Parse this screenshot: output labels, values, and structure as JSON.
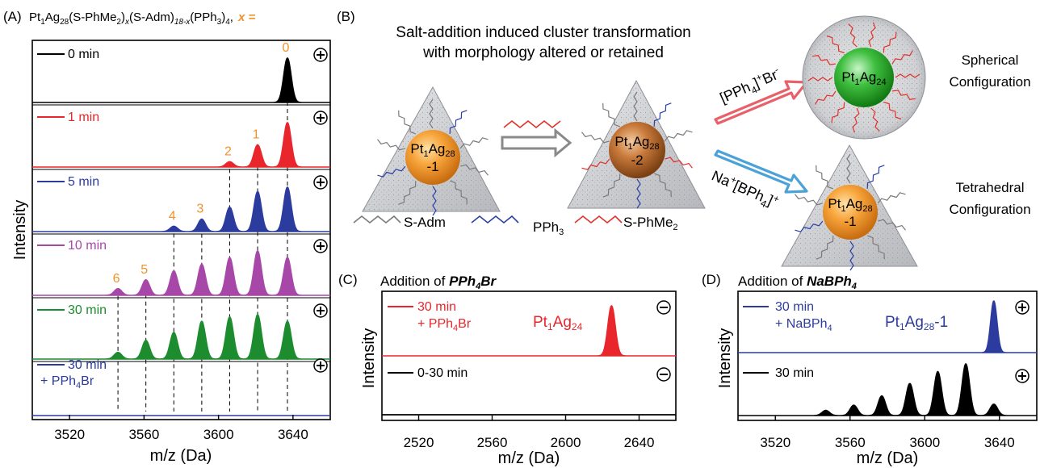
{
  "figure": {
    "panel_a_label": "(A)",
    "panel_b_label": "(B)",
    "panel_c_label": "(C)",
    "panel_d_label": "(D)"
  },
  "panel_a": {
    "formula_parts": [
      "Pt",
      "1",
      "Ag",
      "28",
      "(S-PhMe",
      "2",
      ")",
      "x",
      "(S-Adm)",
      "18-x",
      "(PPh",
      "3",
      ")",
      "4",
      ",",
      "x ="
    ],
    "ylabel": "Intensity",
    "xlabel": "m/z (Da)"
  },
  "panel_b": {
    "title_line1": "Salt-addition induced cluster transformation",
    "title_line2": "with morphology altered or retained",
    "cluster1_label": [
      "Pt",
      "1",
      "Ag",
      "28",
      "-1"
    ],
    "cluster2_label": [
      "Pt",
      "1",
      "Ag",
      "28",
      "-2"
    ],
    "sphere_label": [
      "Pt",
      "1",
      "Ag",
      "24"
    ],
    "cluster3_label": [
      "Pt",
      "1",
      "Ag",
      "28",
      "-1"
    ],
    "reagent_top": [
      "[PPh",
      "4",
      "]",
      "+",
      "Br",
      "-"
    ],
    "reagent_bottom": [
      "Na",
      "+",
      "[BPh",
      "4",
      "]",
      "+"
    ],
    "config_top": [
      "Spherical",
      "Configuration"
    ],
    "config_bottom": [
      "Tetrahedral",
      "Configuration"
    ],
    "legend": [
      {
        "label": "S-Adm",
        "color": "#7a7a7a"
      },
      {
        "label": "PPh",
        "sub": "3",
        "color": "#2a3fa8"
      },
      {
        "label": "S-PhMe",
        "sub": "2",
        "color": "#e0302a"
      }
    ]
  },
  "panel_c": {
    "title": "Addition of ",
    "title_reagent": [
      "PPh",
      "4",
      "Br"
    ],
    "ylabel": "Intensity",
    "xlabel": "m/z (Da)",
    "trace_top_label": [
      "30 min",
      "+ PPh",
      "4",
      "Br"
    ],
    "trace_bottom_label": "0-30 min",
    "peak_label": [
      "Pt",
      "1",
      "Ag",
      "24"
    ]
  },
  "panel_d": {
    "title": "Addition of ",
    "title_reagent": [
      "NaBPh",
      "4"
    ],
    "ylabel": "Intensity",
    "xlabel": "m/z (Da)",
    "trace_top_label": [
      "30 min",
      "+ NaBPh",
      "4"
    ],
    "trace_bottom_label": "30 min",
    "peak_label": [
      "Pt",
      "1",
      "Ag",
      "28",
      "-1"
    ]
  },
  "chart_data": [
    {
      "id": "A",
      "type": "line",
      "xlabel": "m/z (Da)",
      "ylabel": "Intensity",
      "xlim": [
        3500,
        3660
      ],
      "xticks": [
        3520,
        3560,
        3600,
        3640
      ],
      "peak_positions": [
        3637,
        3621,
        3606,
        3591,
        3576,
        3561,
        3546
      ],
      "peak_labels": [
        "0",
        "1",
        "2",
        "3",
        "4",
        "5",
        "6"
      ],
      "polarity": "+",
      "series": [
        {
          "name": "0 min",
          "color": "#000000",
          "intensities": [
            1.0,
            0,
            0,
            0,
            0,
            0,
            0
          ]
        },
        {
          "name": "1 min",
          "color": "#e8262b",
          "intensities": [
            1.0,
            0.5,
            0.12,
            0,
            0,
            0,
            0
          ]
        },
        {
          "name": "5 min",
          "color": "#2c3c9e",
          "intensities": [
            1.0,
            0.9,
            0.55,
            0.28,
            0.12,
            0,
            0
          ]
        },
        {
          "name": "10 min",
          "color": "#a748a9",
          "intensities": [
            0.85,
            1.0,
            0.85,
            0.7,
            0.55,
            0.35,
            0.15
          ]
        },
        {
          "name": "30 min",
          "color": "#1c8c2e",
          "intensities": [
            0.85,
            1.0,
            0.95,
            0.85,
            0.6,
            0.42,
            0.15
          ]
        },
        {
          "name": "30 min",
          "name_line2": [
            "+ PPh",
            "4",
            "Br"
          ],
          "color": "#2c3c9e",
          "intensities": [
            0,
            0,
            0,
            0,
            0,
            0,
            0
          ]
        }
      ]
    },
    {
      "id": "C",
      "type": "line",
      "xlabel": "m/z (Da)",
      "ylabel": "Intensity",
      "xlim": [
        2500,
        2660
      ],
      "xticks": [
        2520,
        2560,
        2600,
        2640
      ],
      "series": [
        {
          "name": "30 min + PPh4Br",
          "color": "#e8262b",
          "peak_x": 2625,
          "intensity": 1.0,
          "polarity": "-"
        },
        {
          "name": "0-30 min",
          "color": "#000000",
          "peak_x": null,
          "intensity": 0,
          "polarity": "-"
        }
      ]
    },
    {
      "id": "D",
      "type": "line",
      "xlabel": "m/z (Da)",
      "ylabel": "Intensity",
      "xlim": [
        3500,
        3660
      ],
      "xticks": [
        3520,
        3560,
        3600,
        3640
      ],
      "series": [
        {
          "name": "30 min + NaBPh4",
          "color": "#2c3c9e",
          "peaks": [
            [
              3637,
              1.0
            ]
          ],
          "polarity": "+"
        },
        {
          "name": "30 min",
          "color": "#000000",
          "peaks": [
            [
              3637,
              0.22
            ],
            [
              3622,
              1.0
            ],
            [
              3607,
              0.85
            ],
            [
              3592,
              0.62
            ],
            [
              3577,
              0.38
            ],
            [
              3562,
              0.2
            ],
            [
              3547,
              0.1
            ]
          ],
          "polarity": "+"
        }
      ]
    }
  ],
  "colors": {
    "red": "#e8262b",
    "blue": "#2c3c9e",
    "purple": "#a748a9",
    "green": "#1c8c2e",
    "orange": "#f0922a",
    "gray_arrow": "#8a8a8a",
    "red_arrow": "#e8606a",
    "blue_arrow": "#4aa2d8"
  }
}
